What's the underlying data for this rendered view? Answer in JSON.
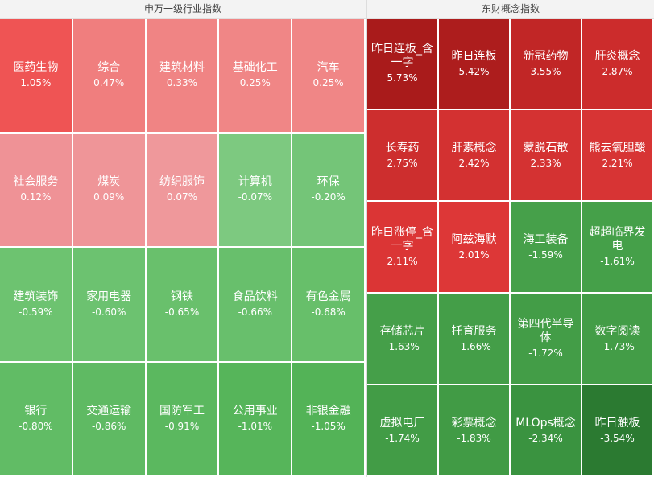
{
  "panels": [
    {
      "title": "申万一级行业指数",
      "cols": 5,
      "rows": 4,
      "tiles": [
        {
          "name": "医药生物",
          "value": "1.05%",
          "color": "#ef5454"
        },
        {
          "name": "综合",
          "value": "0.47%",
          "color": "#f07e7e"
        },
        {
          "name": "建筑材料",
          "value": "0.33%",
          "color": "#f08484"
        },
        {
          "name": "基础化工",
          "value": "0.25%",
          "color": "#f08686"
        },
        {
          "name": "汽车",
          "value": "0.25%",
          "color": "#f08686"
        },
        {
          "name": "社会服务",
          "value": "0.12%",
          "color": "#ef9296"
        },
        {
          "name": "煤炭",
          "value": "0.09%",
          "color": "#ef9598"
        },
        {
          "name": "纺织服饰",
          "value": "0.07%",
          "color": "#ef989b"
        },
        {
          "name": "计算机",
          "value": "-0.07%",
          "color": "#7dc980"
        },
        {
          "name": "环保",
          "value": "-0.20%",
          "color": "#74c578"
        },
        {
          "name": "建筑装饰",
          "value": "-0.59%",
          "color": "#6dc370"
        },
        {
          "name": "家用电器",
          "value": "-0.60%",
          "color": "#6cc270"
        },
        {
          "name": "钢铁",
          "value": "-0.65%",
          "color": "#69c06c"
        },
        {
          "name": "食品饮料",
          "value": "-0.66%",
          "color": "#68bf6c"
        },
        {
          "name": "有色金属",
          "value": "-0.68%",
          "color": "#67bf6a"
        },
        {
          "name": "银行",
          "value": "-0.80%",
          "color": "#61bc65"
        },
        {
          "name": "交通运输",
          "value": "-0.86%",
          "color": "#5fba63"
        },
        {
          "name": "国防军工",
          "value": "-0.91%",
          "color": "#5bb85f"
        },
        {
          "name": "公用事业",
          "value": "-1.01%",
          "color": "#56b55a"
        },
        {
          "name": "非银金融",
          "value": "-1.05%",
          "color": "#53b357"
        }
      ]
    },
    {
      "title": "东财概念指数",
      "cols": 4,
      "rows": 5,
      "tiles": [
        {
          "name": "昨日连板_含一字",
          "value": "5.73%",
          "color": "#a91b1b"
        },
        {
          "name": "昨日连板",
          "value": "5.42%",
          "color": "#ad1d1d"
        },
        {
          "name": "新冠药物",
          "value": "3.55%",
          "color": "#c12626"
        },
        {
          "name": "肝炎概念",
          "value": "2.87%",
          "color": "#cc2c2c"
        },
        {
          "name": "长寿药",
          "value": "2.75%",
          "color": "#cd2e2e"
        },
        {
          "name": "肝素概念",
          "value": "2.42%",
          "color": "#d33131"
        },
        {
          "name": "蒙脱石散",
          "value": "2.33%",
          "color": "#d43232"
        },
        {
          "name": "熊去氧胆酸",
          "value": "2.21%",
          "color": "#d73434"
        },
        {
          "name": "昨日涨停_含一字",
          "value": "2.11%",
          "color": "#db3535"
        },
        {
          "name": "阿兹海默",
          "value": "2.01%",
          "color": "#dd3737"
        },
        {
          "name": "海工装备",
          "value": "-1.59%",
          "color": "#46a04a"
        },
        {
          "name": "超超临界发电",
          "value": "-1.61%",
          "color": "#45a049"
        },
        {
          "name": "存储芯片",
          "value": "-1.63%",
          "color": "#459f49"
        },
        {
          "name": "托育服务",
          "value": "-1.66%",
          "color": "#449e48"
        },
        {
          "name": "第四代半导体",
          "value": "-1.72%",
          "color": "#439d47"
        },
        {
          "name": "数字阅读",
          "value": "-1.73%",
          "color": "#439d47"
        },
        {
          "name": "虚拟电厂",
          "value": "-1.74%",
          "color": "#429c46"
        },
        {
          "name": "彩票概念",
          "value": "-1.83%",
          "color": "#419b45"
        },
        {
          "name": "MLOps概念",
          "value": "-2.34%",
          "color": "#3a9340"
        },
        {
          "name": "昨日触板",
          "value": "-3.54%",
          "color": "#2b7a31"
        }
      ]
    }
  ],
  "chart_data": [
    {
      "type": "heatmap",
      "title": "申万一级行业指数",
      "categories": [
        "医药生物",
        "综合",
        "建筑材料",
        "基础化工",
        "汽车",
        "社会服务",
        "煤炭",
        "纺织服饰",
        "计算机",
        "环保",
        "建筑装饰",
        "家用电器",
        "钢铁",
        "食品饮料",
        "有色金属",
        "银行",
        "交通运输",
        "国防军工",
        "公用事业",
        "非银金融"
      ],
      "values": [
        1.05,
        0.47,
        0.33,
        0.25,
        0.25,
        0.12,
        0.09,
        0.07,
        -0.07,
        -0.2,
        -0.59,
        -0.6,
        -0.65,
        -0.66,
        -0.68,
        -0.8,
        -0.86,
        -0.91,
        -1.01,
        -1.05
      ],
      "unit": "%"
    },
    {
      "type": "heatmap",
      "title": "东财概念指数",
      "categories": [
        "昨日连板_含一字",
        "昨日连板",
        "新冠药物",
        "肝炎概念",
        "长寿药",
        "肝素概念",
        "蒙脱石散",
        "熊去氧胆酸",
        "昨日涨停_含一字",
        "阿兹海默",
        "海工装备",
        "超超临界发电",
        "存储芯片",
        "托育服务",
        "第四代半导体",
        "数字阅读",
        "虚拟电厂",
        "彩票概念",
        "MLOps概念",
        "昨日触板"
      ],
      "values": [
        5.73,
        5.42,
        3.55,
        2.87,
        2.75,
        2.42,
        2.33,
        2.21,
        2.11,
        2.01,
        -1.59,
        -1.61,
        -1.63,
        -1.66,
        -1.72,
        -1.73,
        -1.74,
        -1.83,
        -2.34,
        -3.54
      ],
      "unit": "%"
    }
  ]
}
